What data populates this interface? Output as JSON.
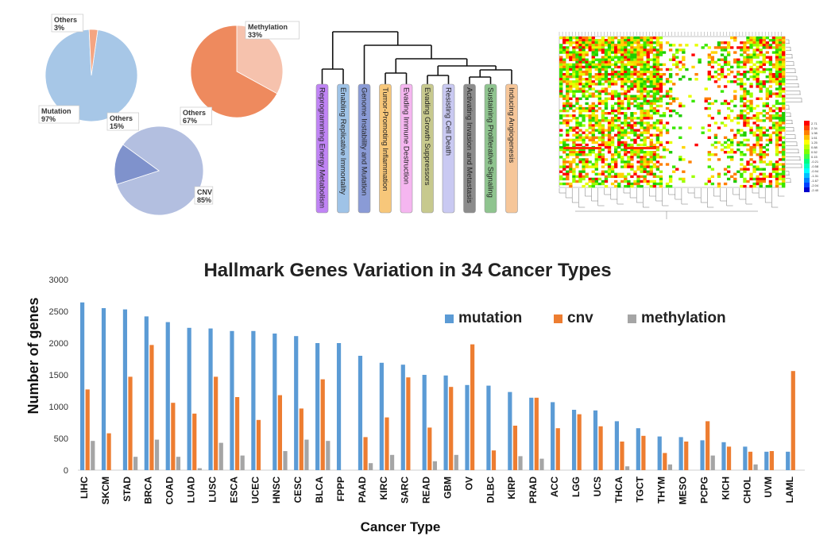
{
  "chart_data": [
    {
      "type": "pie",
      "name": "mutation-pie",
      "slices": [
        {
          "label": "Mutation",
          "percent_label": "97%",
          "value": 97,
          "color": "#a7c7e7"
        },
        {
          "label": "Others",
          "percent_label": "3%",
          "value": 3,
          "color": "#f4a582"
        }
      ]
    },
    {
      "type": "pie",
      "name": "methylation-pie",
      "slices": [
        {
          "label": "Methylation",
          "percent_label": "33%",
          "value": 33,
          "color": "#f6c2ad"
        },
        {
          "label": "Others",
          "percent_label": "67%",
          "value": 67,
          "color": "#ee8a5e"
        }
      ]
    },
    {
      "type": "pie",
      "name": "cnv-pie",
      "slices": [
        {
          "label": "CNV",
          "percent_label": "85%",
          "value": 85,
          "color": "#b3bfe0"
        },
        {
          "label": "Others",
          "percent_label": "15%",
          "value": 15,
          "color": "#7f92cc"
        }
      ]
    },
    {
      "type": "dendrogram",
      "name": "hallmarks-dendrogram",
      "leaves": [
        {
          "label": "Reprogramming Energy Metabolism",
          "color": "#c084f5"
        },
        {
          "label": "Enabling Replicative Immortality",
          "color": "#9fc3e7"
        },
        {
          "label": "Genome Instability and Mutation",
          "color": "#8a9bd6"
        },
        {
          "label": "Tumor-Promoting Inflammation",
          "color": "#f7c77a"
        },
        {
          "label": "Evading Immune Destruction",
          "color": "#f5b6f0"
        },
        {
          "label": "Evading Growth Suppressors",
          "color": "#c7c98e"
        },
        {
          "label": "Resisting Cell Death",
          "color": "#c9c9f2"
        },
        {
          "label": "Activating Invasion and Metastasis",
          "color": "#8c8c8c"
        },
        {
          "label": "Sustaining Proliferative Signaling",
          "color": "#8fc48f"
        },
        {
          "label": "Inducing Angiogenesis",
          "color": "#f6c699"
        }
      ]
    },
    {
      "type": "heatmap",
      "name": "hallmark-heatmap",
      "color_scale_labels": [
        "2.71",
        "2.34",
        "1.98",
        "1.61",
        "1.25",
        "0.88",
        "0.52",
        "0.15",
        "-0.21",
        "-0.58",
        "-0.94",
        "-1.31",
        "-1.67",
        "-2.04",
        "-2.40"
      ]
    },
    {
      "type": "bar",
      "name": "hallmark-variation-bar",
      "title": "Hallmark Genes Variation in 34 Cancer Types",
      "xlabel": "Cancer Type",
      "ylabel": "Number of genes",
      "ylim": [
        0,
        3000
      ],
      "yticks": [
        0,
        500,
        1000,
        1500,
        2000,
        2500,
        3000
      ],
      "legend_position": "top-right",
      "categories": [
        "LIHC",
        "SKCM",
        "STAD",
        "BRCA",
        "COAD",
        "LUAD",
        "LUSC",
        "ESCA",
        "UCEC",
        "HNSC",
        "CESC",
        "BLCA",
        "FPPP",
        "PAAD",
        "KIRC",
        "SARC",
        "READ",
        "GBM",
        "OV",
        "DLBC",
        "KIRP",
        "PRAD",
        "ACC",
        "LGG",
        "UCS",
        "THCA",
        "TGCT",
        "THYM",
        "MESO",
        "PCPG",
        "KICH",
        "CHOL",
        "UVM",
        "LAML"
      ],
      "series": [
        {
          "name": "mutation",
          "color": "#5b9bd5",
          "values": [
            2640,
            2550,
            2530,
            2420,
            2330,
            2240,
            2230,
            2190,
            2190,
            2150,
            2110,
            2000,
            2000,
            1800,
            1690,
            1660,
            1500,
            1490,
            1340,
            1330,
            1230,
            1140,
            1070,
            950,
            940,
            770,
            660,
            530,
            520,
            470,
            440,
            370,
            290,
            290
          ]
        },
        {
          "name": "cnv",
          "color": "#ed7d31",
          "values": [
            1270,
            580,
            1470,
            1970,
            1060,
            890,
            1470,
            1150,
            790,
            1180,
            970,
            1430,
            0,
            520,
            830,
            1460,
            670,
            1310,
            1980,
            310,
            700,
            1140,
            660,
            880,
            690,
            450,
            540,
            270,
            450,
            770,
            370,
            290,
            300,
            1560
          ]
        },
        {
          "name": "methylation",
          "color": "#a5a5a5",
          "values": [
            460,
            0,
            210,
            480,
            210,
            30,
            430,
            230,
            0,
            300,
            480,
            460,
            0,
            110,
            240,
            0,
            140,
            240,
            0,
            0,
            220,
            180,
            0,
            0,
            0,
            60,
            0,
            90,
            0,
            230,
            0,
            90,
            0,
            0
          ]
        }
      ]
    }
  ]
}
